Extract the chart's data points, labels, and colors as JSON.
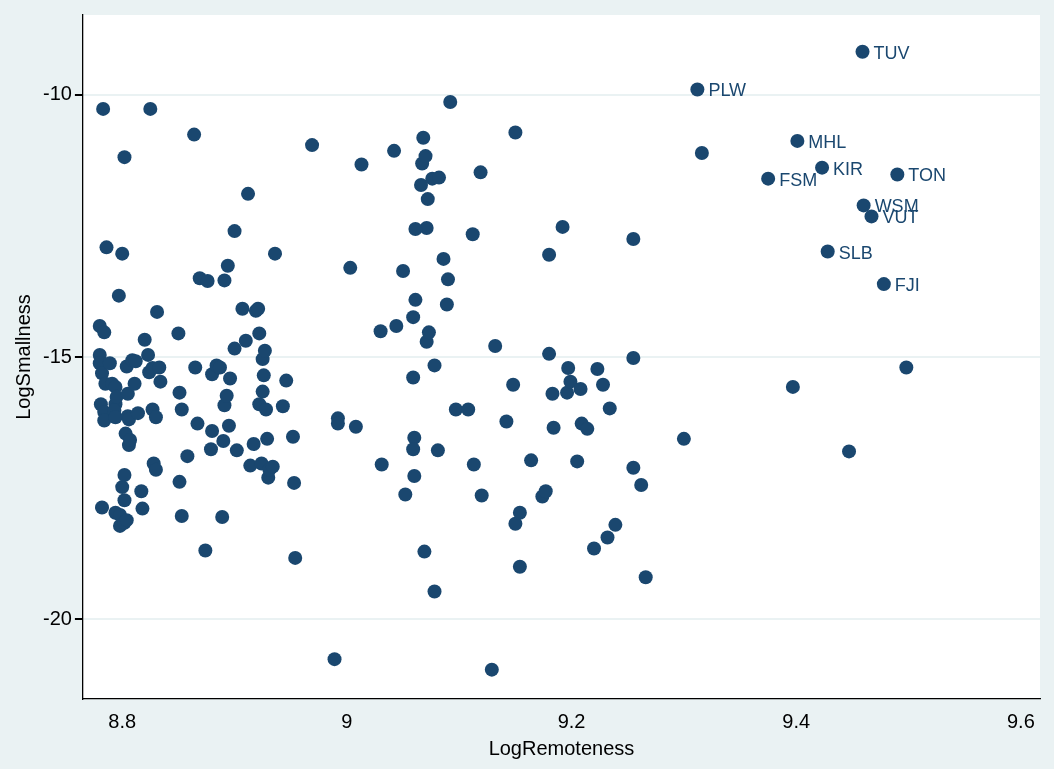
{
  "chart_data": {
    "type": "scatter",
    "xlabel": "LogRemoteness",
    "ylabel": "LogSmallness",
    "xlim": [
      8.765,
      9.617
    ],
    "ylim": [
      -21.52,
      -8.48
    ],
    "xticks": [
      8.8,
      9,
      9.2,
      9.4,
      9.6
    ],
    "yticks": [
      -20,
      -15,
      -10
    ],
    "grid": "y",
    "legend": false,
    "marker": "circle",
    "series": [
      {
        "color": "#1a476f",
        "x": [
          9.459,
          9.312,
          9.401,
          9.423,
          9.49,
          9.375,
          9.46,
          9.467,
          9.428,
          9.478,
          8.78,
          8.784,
          8.78,
          8.78,
          8.782,
          8.785,
          8.781,
          8.784,
          8.784,
          8.782,
          8.783,
          8.825,
          8.802,
          8.786,
          8.8,
          8.797,
          8.789,
          8.791,
          8.794,
          8.794,
          8.795,
          8.793,
          8.794,
          8.794,
          8.8,
          8.798,
          8.798,
          8.802,
          8.802,
          8.803,
          8.802,
          8.804,
          8.805,
          8.805,
          8.806,
          8.807,
          8.806,
          8.804,
          8.809,
          8.811,
          8.812,
          8.814,
          8.817,
          8.818,
          8.82,
          8.823,
          8.824,
          8.827,
          8.827,
          8.828,
          8.83,
          8.83,
          8.833,
          8.834,
          8.831,
          8.85,
          8.851,
          8.851,
          8.853,
          8.853,
          8.858,
          8.864,
          8.865,
          8.867,
          8.869,
          8.874,
          8.876,
          8.88,
          8.879,
          8.88,
          8.884,
          8.887,
          8.89,
          8.891,
          8.891,
          8.894,
          8.893,
          8.889,
          8.895,
          8.896,
          8.9,
          8.9,
          8.902,
          8.907,
          8.91,
          8.912,
          8.914,
          8.917,
          8.919,
          8.921,
          8.922,
          8.922,
          8.924,
          8.925,
          8.926,
          8.925,
          8.927,
          8.928,
          8.929,
          8.93,
          8.931,
          8.934,
          8.936,
          8.943,
          8.946,
          8.952,
          8.953,
          8.954,
          8.969,
          8.989,
          8.992,
          8.992,
          9.008,
          9.013,
          9.003,
          9.03,
          9.031,
          9.042,
          9.044,
          9.05,
          9.059,
          9.059,
          9.06,
          9.059,
          9.06,
          9.052,
          9.061,
          9.066,
          9.067,
          9.068,
          9.07,
          9.071,
          9.061,
          9.071,
          9.073,
          9.072,
          9.076,
          9.078,
          9.081,
          9.082,
          9.086,
          9.089,
          9.09,
          9.092,
          9.097,
          9.108,
          9.113,
          9.112,
          9.12,
          9.119,
          9.132,
          9.15,
          9.148,
          9.142,
          9.15,
          9.154,
          9.154,
          9.164,
          9.174,
          9.177,
          9.18,
          9.18,
          9.183,
          9.184,
          9.192,
          9.196,
          9.197,
          9.199,
          9.205,
          9.208,
          9.209,
          9.214,
          9.223,
          9.228,
          9.234,
          9.22,
          9.232,
          9.239,
          9.255,
          9.255,
          9.255,
          9.262,
          9.266,
          9.3,
          9.316,
          9.397,
          9.447,
          9.498,
          9.078,
          9.069,
          9.129
        ],
        "values": [
          -9.18,
          -9.9,
          -10.88,
          -11.39,
          -11.52,
          -11.6,
          -12.11,
          -12.32,
          -12.99,
          -13.61,
          -14.41,
          -14.53,
          -14.96,
          -15.12,
          -15.31,
          -15.51,
          -15.9,
          -16.05,
          -16.21,
          -17.87,
          -10.27,
          -10.27,
          -11.19,
          -12.91,
          -13.03,
          -13.83,
          -15.12,
          -15.51,
          -15.9,
          -15.57,
          -15.76,
          -16.02,
          -16.15,
          -17.97,
          -17.48,
          -18.01,
          -18.22,
          -17.25,
          -17.73,
          -16.46,
          -18.16,
          -15.18,
          -15.7,
          -16.13,
          -16.68,
          -16.58,
          -16.19,
          -18.11,
          -15.06,
          -15.51,
          -15.08,
          -16.07,
          -17.56,
          -17.89,
          -14.67,
          -14.96,
          -15.29,
          -15.21,
          -16.0,
          -17.03,
          -17.15,
          -16.15,
          -15.2,
          -15.47,
          -14.14,
          -14.55,
          -15.68,
          -17.38,
          -18.03,
          -16.0,
          -16.89,
          -10.76,
          -15.2,
          -16.27,
          -13.5,
          -18.69,
          -13.55,
          -16.41,
          -16.76,
          -15.33,
          -15.16,
          -15.2,
          -16.6,
          -15.92,
          -13.54,
          -13.26,
          -15.74,
          -18.05,
          -16.31,
          -15.41,
          -12.6,
          -14.84,
          -16.78,
          -14.08,
          -14.69,
          -11.89,
          -17.07,
          -16.66,
          -14.12,
          -14.08,
          -14.55,
          -15.9,
          -17.03,
          -15.66,
          -15.35,
          -15.04,
          -14.88,
          -16.0,
          -16.56,
          -17.3,
          -17.15,
          -17.09,
          -13.03,
          -15.94,
          -15.45,
          -16.52,
          -17.4,
          -18.83,
          -10.96,
          -20.76,
          -16.17,
          -16.27,
          -16.33,
          -11.33,
          -13.3,
          -14.51,
          -17.05,
          -11.07,
          -14.41,
          -13.36,
          -14.24,
          -15.39,
          -16.54,
          -16.76,
          -17.27,
          -17.62,
          -13.91,
          -11.72,
          -11.31,
          -10.82,
          -11.17,
          -12.54,
          -12.56,
          -14.71,
          -14.53,
          -11.99,
          -11.6,
          -15.16,
          -16.78,
          -11.58,
          -13.13,
          -14.0,
          -13.52,
          -10.14,
          -16.0,
          -16.0,
          -17.05,
          -12.66,
          -17.64,
          -11.48,
          -14.79,
          -10.72,
          -15.53,
          -16.23,
          -18.18,
          -17.97,
          -19.0,
          -16.97,
          -17.66,
          -17.56,
          -14.94,
          -13.05,
          -15.7,
          -16.35,
          -12.52,
          -15.68,
          -15.21,
          -15.47,
          -16.99,
          -15.61,
          -16.27,
          -16.37,
          -15.23,
          -15.53,
          -15.98,
          -18.65,
          -18.44,
          -18.2,
          -12.75,
          -15.02,
          -17.11,
          -17.44,
          -19.2,
          -16.56,
          -11.11,
          -15.57,
          -16.8,
          -15.2,
          -19.47,
          -18.71,
          -20.96
        ]
      }
    ],
    "annotations": [
      {
        "text": "TUV",
        "x": 9.459,
        "y": -9.18
      },
      {
        "text": "PLW",
        "x": 9.312,
        "y": -9.9
      },
      {
        "text": "MHL",
        "x": 9.401,
        "y": -10.88
      },
      {
        "text": "KIR",
        "x": 9.423,
        "y": -11.39
      },
      {
        "text": "TON",
        "x": 9.49,
        "y": -11.52
      },
      {
        "text": "FSM",
        "x": 9.375,
        "y": -11.6
      },
      {
        "text": "WSM",
        "x": 9.46,
        "y": -12.11
      },
      {
        "text": "VUT",
        "x": 9.467,
        "y": -12.32
      },
      {
        "text": "SLB",
        "x": 9.428,
        "y": -12.99
      },
      {
        "text": "FJI",
        "x": 9.478,
        "y": -13.61
      }
    ]
  }
}
